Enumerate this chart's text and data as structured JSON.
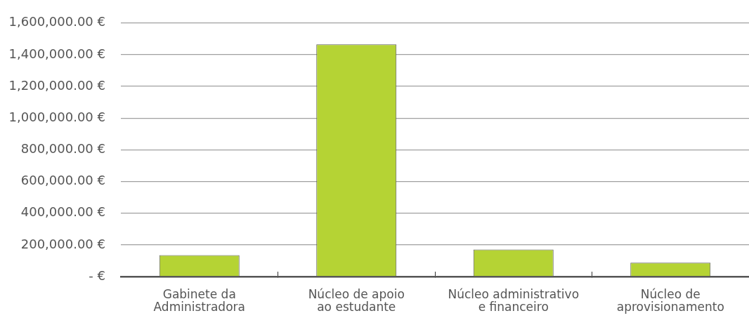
{
  "chart_data": {
    "type": "bar",
    "categories": [
      "Gabinete da Administradora",
      "Núcleo de apoio ao estudante",
      "Núcleo administrativo e financeiro",
      "Núcleo de aprovisionamento"
    ],
    "values": [
      135000,
      1465000,
      170000,
      87000
    ],
    "color": "#b5d334",
    "ylim": [
      0,
      1600000
    ],
    "yticks": [
      {
        "value": 0,
        "label": "- €"
      },
      {
        "value": 200000,
        "label": "200,000.00 €"
      },
      {
        "value": 400000,
        "label": "400,000.00 €"
      },
      {
        "value": 600000,
        "label": "600,000.00 €"
      },
      {
        "value": 800000,
        "label": "800,000.00 €"
      },
      {
        "value": 1000000,
        "label": "1,000,000.00 €"
      },
      {
        "value": 1200000,
        "label": "1,200,000.00 €"
      },
      {
        "value": 1400000,
        "label": "1,400,000.00 €"
      },
      {
        "value": 1600000,
        "label": "1,600,000.00 €"
      }
    ],
    "grid": "y"
  }
}
